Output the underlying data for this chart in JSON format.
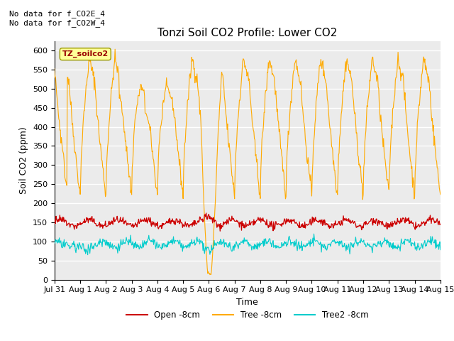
{
  "title": "Tonzi Soil CO2 Profile: Lower CO2",
  "ylabel": "Soil CO2 (ppm)",
  "xlabel": "Time",
  "top_left_text": "No data for f_CO2E_4\nNo data for f_CO2W_4",
  "legend_label": "TZ_soilco2",
  "ylim": [
    0,
    625
  ],
  "yticks": [
    0,
    50,
    100,
    150,
    200,
    250,
    300,
    350,
    400,
    450,
    500,
    550,
    600
  ],
  "xtick_labels": [
    "Jul 31",
    "Aug 1",
    "Aug 2",
    "Aug 3",
    "Aug 4",
    "Aug 5",
    "Aug 6",
    "Aug 7",
    "Aug 8",
    "Aug 9",
    "Aug 10",
    "Aug 11",
    "Aug 12",
    "Aug 13",
    "Aug 14",
    "Aug 15"
  ],
  "series_colors": {
    "open": "#cc0000",
    "tree": "#ffaa00",
    "tree2": "#00cccc"
  },
  "legend_labels": [
    "Open -8cm",
    "Tree -8cm",
    "Tree2 -8cm"
  ],
  "fig_bg_color": "#ffffff",
  "plot_bg_color": "#ebebeb",
  "grid_color": "#ffffff",
  "note_fontsize": 8,
  "title_fontsize": 11,
  "axis_fontsize": 8,
  "label_fontsize": 9
}
